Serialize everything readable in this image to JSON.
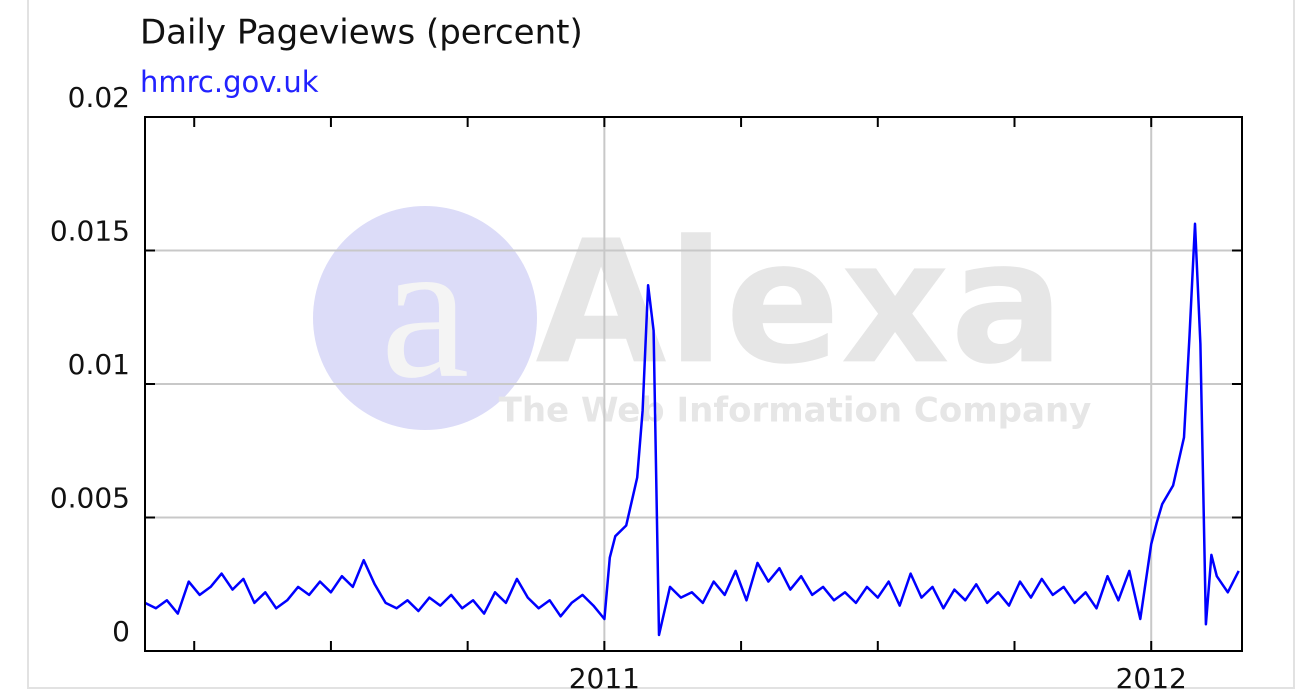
{
  "chart_data": {
    "type": "line",
    "title": "Daily Pageviews (percent)",
    "subtitle": "hmrc.gov.uk",
    "watermark": "Alexa",
    "watermark_tagline": "The Web Information Company",
    "color": "#0000ff",
    "grid": true,
    "xlim": [
      2010.16,
      2012.166
    ],
    "xticks": [
      2011,
      2012
    ],
    "xminorticks": [
      2010.25,
      2010.5,
      2010.75,
      2011,
      2011.25,
      2011.5,
      2011.75,
      2012
    ],
    "ylim": [
      0,
      0.02
    ],
    "yticks": [
      0,
      0.005,
      0.01,
      0.015,
      0.02
    ],
    "x": [
      2010.16,
      2010.18,
      2010.2,
      2010.22,
      2010.24,
      2010.26,
      2010.28,
      2010.3,
      2010.32,
      2010.34,
      2010.36,
      2010.38,
      2010.4,
      2010.42,
      2010.44,
      2010.46,
      2010.48,
      2010.5,
      2010.52,
      2010.54,
      2010.56,
      2010.58,
      2010.6,
      2010.62,
      2010.64,
      2010.66,
      2010.68,
      2010.7,
      2010.72,
      2010.74,
      2010.76,
      2010.78,
      2010.8,
      2010.82,
      2010.84,
      2010.86,
      2010.88,
      2010.9,
      2010.92,
      2010.94,
      2010.96,
      2010.98,
      2011.0,
      2011.01,
      2011.02,
      2011.04,
      2011.06,
      2011.07,
      2011.08,
      2011.09,
      2011.1,
      2011.12,
      2011.14,
      2011.16,
      2011.18,
      2011.2,
      2011.22,
      2011.24,
      2011.26,
      2011.28,
      2011.3,
      2011.32,
      2011.34,
      2011.36,
      2011.38,
      2011.4,
      2011.42,
      2011.44,
      2011.46,
      2011.48,
      2011.5,
      2011.52,
      2011.54,
      2011.56,
      2011.58,
      2011.6,
      2011.62,
      2011.64,
      2011.66,
      2011.68,
      2011.7,
      2011.72,
      2011.74,
      2011.76,
      2011.78,
      2011.8,
      2011.82,
      2011.84,
      2011.86,
      2011.88,
      2011.9,
      2011.92,
      2011.94,
      2011.96,
      2011.98,
      2012.0,
      2012.01,
      2012.02,
      2012.04,
      2012.06,
      2012.07,
      2012.08,
      2012.09,
      2012.1,
      2012.11,
      2012.12,
      2012.14,
      2012.16
    ],
    "values": [
      0.0018,
      0.0016,
      0.0019,
      0.0014,
      0.0026,
      0.0021,
      0.0024,
      0.0029,
      0.0023,
      0.0027,
      0.0018,
      0.0022,
      0.0016,
      0.0019,
      0.0024,
      0.0021,
      0.0026,
      0.0022,
      0.0028,
      0.0024,
      0.0034,
      0.0025,
      0.0018,
      0.0016,
      0.0019,
      0.0015,
      0.002,
      0.0017,
      0.0021,
      0.0016,
      0.0019,
      0.0014,
      0.0022,
      0.0018,
      0.0027,
      0.002,
      0.0016,
      0.0019,
      0.0013,
      0.0018,
      0.0021,
      0.0017,
      0.0012,
      0.0035,
      0.0043,
      0.0047,
      0.0065,
      0.009,
      0.0137,
      0.012,
      0.0006,
      0.0024,
      0.002,
      0.0022,
      0.0018,
      0.0026,
      0.0021,
      0.003,
      0.0019,
      0.0033,
      0.0026,
      0.0031,
      0.0023,
      0.0028,
      0.0021,
      0.0024,
      0.0019,
      0.0022,
      0.0018,
      0.0024,
      0.002,
      0.0026,
      0.0017,
      0.0029,
      0.002,
      0.0024,
      0.0016,
      0.0023,
      0.0019,
      0.0025,
      0.0018,
      0.0022,
      0.0017,
      0.0026,
      0.002,
      0.0027,
      0.0021,
      0.0024,
      0.0018,
      0.0022,
      0.0016,
      0.0028,
      0.0019,
      0.003,
      0.0012,
      0.004,
      0.0048,
      0.0055,
      0.0062,
      0.008,
      0.0118,
      0.016,
      0.0115,
      0.001,
      0.0036,
      0.0028,
      0.0022,
      0.003
    ]
  }
}
